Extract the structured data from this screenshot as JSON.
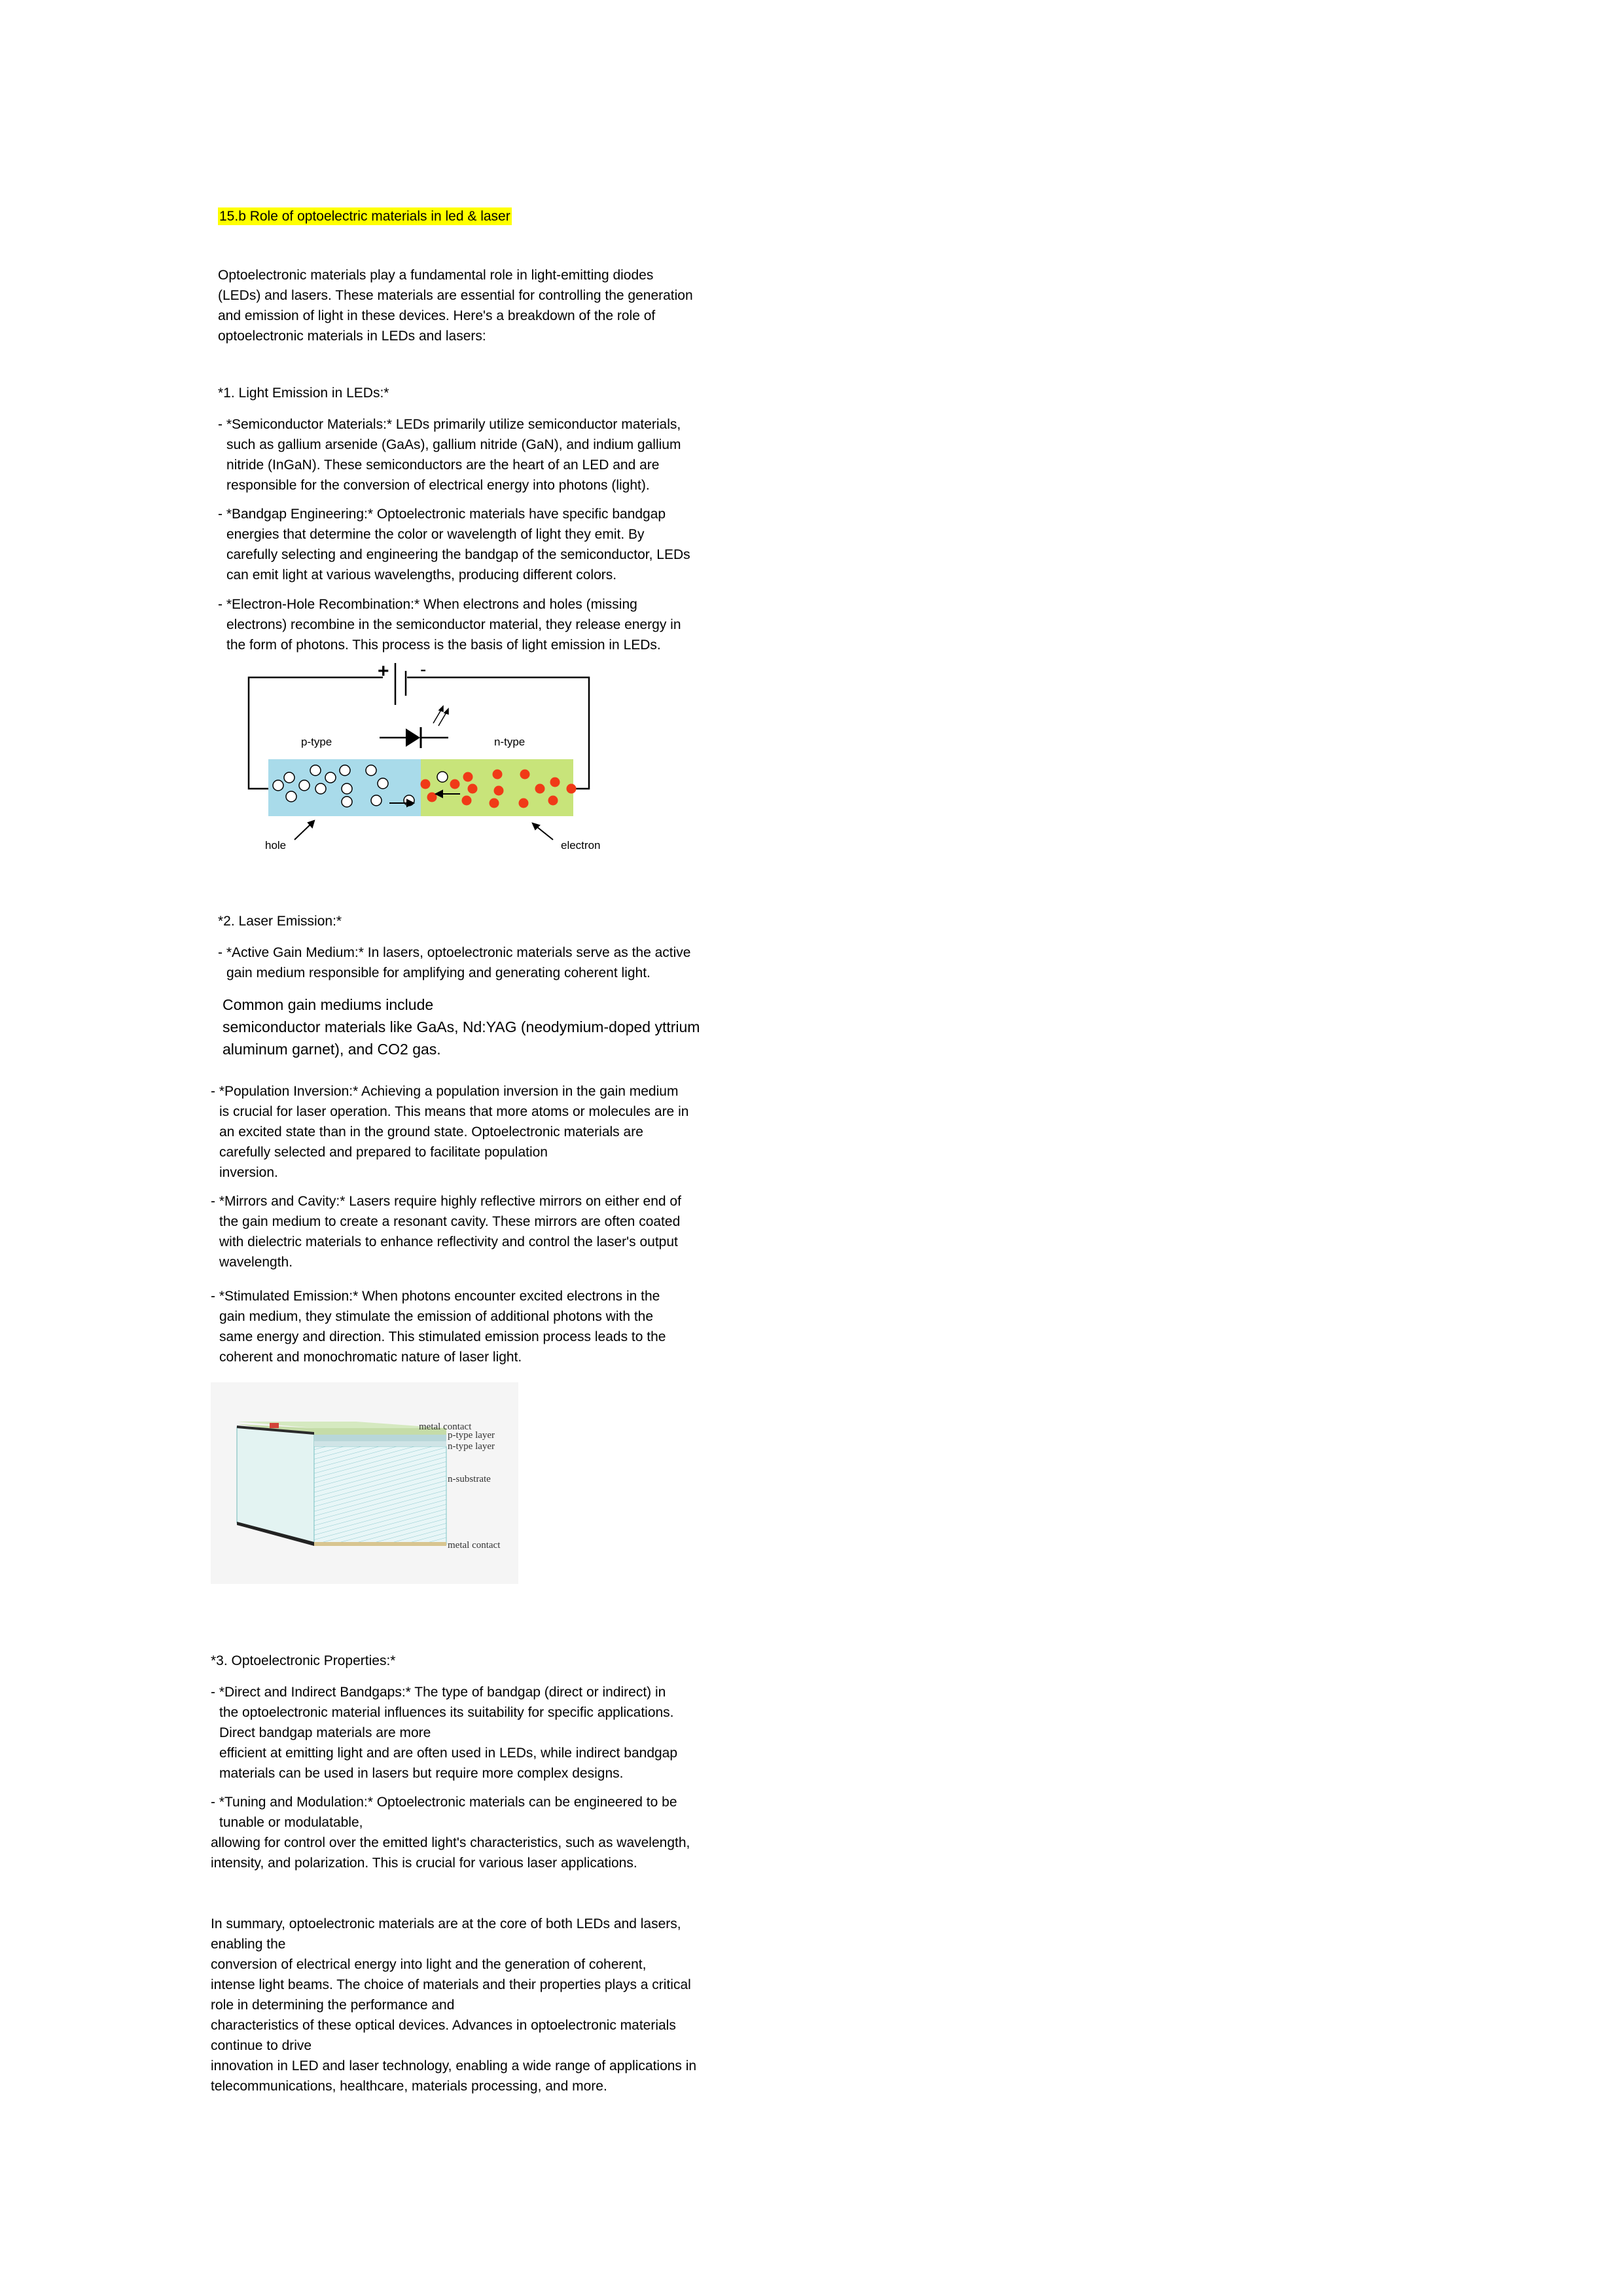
{
  "title": "15.b Role of optoelectric materials in led & laser",
  "intro": [
    "Optoelectronic materials play a fundamental role in light-emitting diodes",
    "(LEDs) and lasers. These materials are essential for controlling the generation",
    "and emission of light in these devices. Here's a breakdown of the role of",
    "optoelectronic materials in LEDs and lasers:"
  ],
  "section1": {
    "heading": "*1. Light Emission in LEDs:*",
    "items": [
      {
        "lines": [
          "- *Semiconductor Materials:* LEDs primarily utilize semiconductor materials,",
          "such as gallium arsenide (GaAs), gallium nitride (GaN), and indium gallium",
          "nitride (InGaN). These semiconductors are the heart of an LED and are",
          "responsible for the conversion of electrical energy into photons (light)."
        ]
      },
      {
        "lines": [
          "- *Bandgap Engineering:* Optoelectronic materials have specific bandgap",
          "energies that determine the color or wavelength of light they emit. By",
          "carefully selecting and engineering the bandgap of the semiconductor, LEDs",
          "can emit light at various wavelengths, producing different colors."
        ]
      },
      {
        "lines": [
          "- *Electron-Hole Recombination:* When electrons and holes (missing",
          "electrons) recombine in the semiconductor material, they release energy in",
          "the form of photons. This process is the basis of light emission in LEDs."
        ]
      }
    ]
  },
  "diagram1": {
    "plus": "+",
    "minus": "-",
    "p_type": "p-type",
    "n_type": "n-type",
    "hole": "hole",
    "electron": "electron",
    "colors": {
      "p_region": "#a9dbea",
      "n_region": "#c8e47a",
      "electron_dot": "#f03a17"
    }
  },
  "section2": {
    "heading": "*2. Laser Emission:*",
    "active": [
      "- *Active Gain Medium:* In lasers, optoelectronic materials serve as the active",
      "gain medium responsible for amplifying and generating coherent light."
    ],
    "common": [
      "Common gain mediums include",
      "semiconductor materials like GaAs, Nd:YAG (neodymium-doped yttrium",
      "aluminum garnet), and CO2 gas."
    ],
    "population": [
      "- *Population Inversion:* Achieving a population inversion in the gain medium",
      "is crucial for laser operation. This means that more atoms or molecules are in",
      "an excited state than in the ground state. Optoelectronic materials are",
      "carefully selected and prepared to facilitate population",
      "inversion."
    ],
    "mirrors": [
      "- *Mirrors and Cavity:* Lasers require highly reflective mirrors on either end of",
      "the gain medium to create a resonant cavity. These mirrors are often coated",
      "with dielectric materials to enhance reflectivity and control the laser's output",
      "wavelength."
    ],
    "stimulated": [
      "- *Stimulated Emission:* When photons encounter excited electrons in the",
      "gain medium, they stimulate the emission of additional photons with the",
      "same energy and direction. This stimulated emission process leads to the",
      "coherent and monochromatic nature of laser light."
    ]
  },
  "diagram2": {
    "metal_contact_top": "metal contact",
    "p_layer": "p-type layer",
    "n_layer": "n-type layer",
    "substrate": "n-substrate",
    "metal_contact_bottom": "metal contact"
  },
  "section3": {
    "heading": "*3. Optoelectronic Properties:*",
    "direct": [
      "- *Direct and Indirect Bandgaps:* The type of bandgap (direct or indirect) in",
      "the optoelectronic material influences its suitability for specific applications.",
      "Direct bandgap materials are more",
      "efficient at emitting light and are often used in LEDs, while indirect bandgap",
      "materials can be used in lasers but require more complex designs."
    ],
    "tuning": [
      "- *Tuning and Modulation:* Optoelectronic materials can be engineered to be",
      "tunable or modulatable,",
      "allowing for control over the emitted light's characteristics, such as wavelength,",
      "intensity, and polarization. This is crucial for various laser applications."
    ]
  },
  "summary": [
    "In summary, optoelectronic materials are at the core of both LEDs and lasers,",
    "enabling the",
    "conversion of electrical energy into light and the generation of coherent,",
    "intense light beams. The choice of materials and their properties plays a critical",
    "role in determining the performance and",
    "characteristics of these optical devices. Advances in optoelectronic materials",
    "continue to drive",
    "innovation in LED and laser technology, enabling a wide range of applications in",
    "telecommunications, healthcare, materials processing, and more."
  ]
}
